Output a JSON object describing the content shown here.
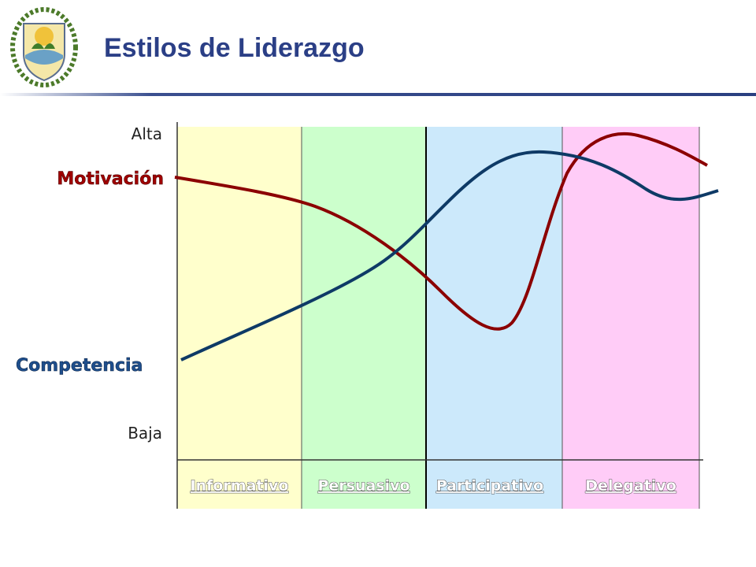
{
  "header": {
    "title": "Estilos de Liderazgo"
  },
  "diagram": {
    "axis_top": "Alta",
    "axis_bottom": "Baja",
    "curves": [
      {
        "label": "Motivación"
      },
      {
        "label": "Competencia"
      }
    ],
    "columns": [
      "Informativo",
      "Persuasivo",
      "Participativo",
      "Delegativo"
    ]
  }
}
